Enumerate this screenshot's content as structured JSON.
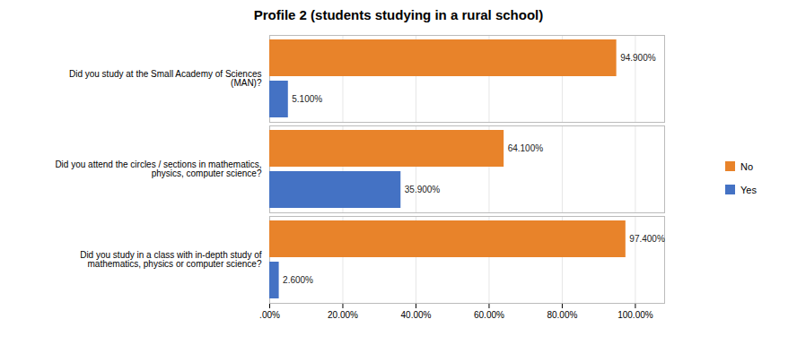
{
  "chart_data": {
    "type": "bar",
    "orientation": "horizontal",
    "title": "Profile 2 (students studying in a rural school)",
    "categories": [
      "Did you study in a class with in-depth study of\nmathematics, physics or computer science?",
      "Did you attend the circles / sections in mathematics,\nphysics, computer science?",
      "Did you study at the Small Academy of Sciences\n(MAN)?"
    ],
    "series": [
      {
        "name": "No",
        "color": "#E8832A",
        "values": [
          97.4,
          64.1,
          94.9
        ],
        "value_labels": [
          "97.400%",
          "64.100%",
          "94.900%"
        ]
      },
      {
        "name": "Yes",
        "color": "#4472C4",
        "values": [
          2.6,
          35.9,
          5.1
        ],
        "value_labels": [
          "2.600%",
          "35.900%",
          "5.100%"
        ]
      }
    ],
    "xlim": [
      0,
      108
    ],
    "xticks": [
      {
        "value": 0,
        "label": ".00%"
      },
      {
        "value": 20,
        "label": "20.00%"
      },
      {
        "value": 40,
        "label": "40.00%"
      },
      {
        "value": 60,
        "label": "60.00%"
      },
      {
        "value": 80,
        "label": "80.00%"
      },
      {
        "value": 100,
        "label": "100.00%"
      }
    ],
    "grid": true,
    "legend": "right",
    "data_labels": true
  }
}
